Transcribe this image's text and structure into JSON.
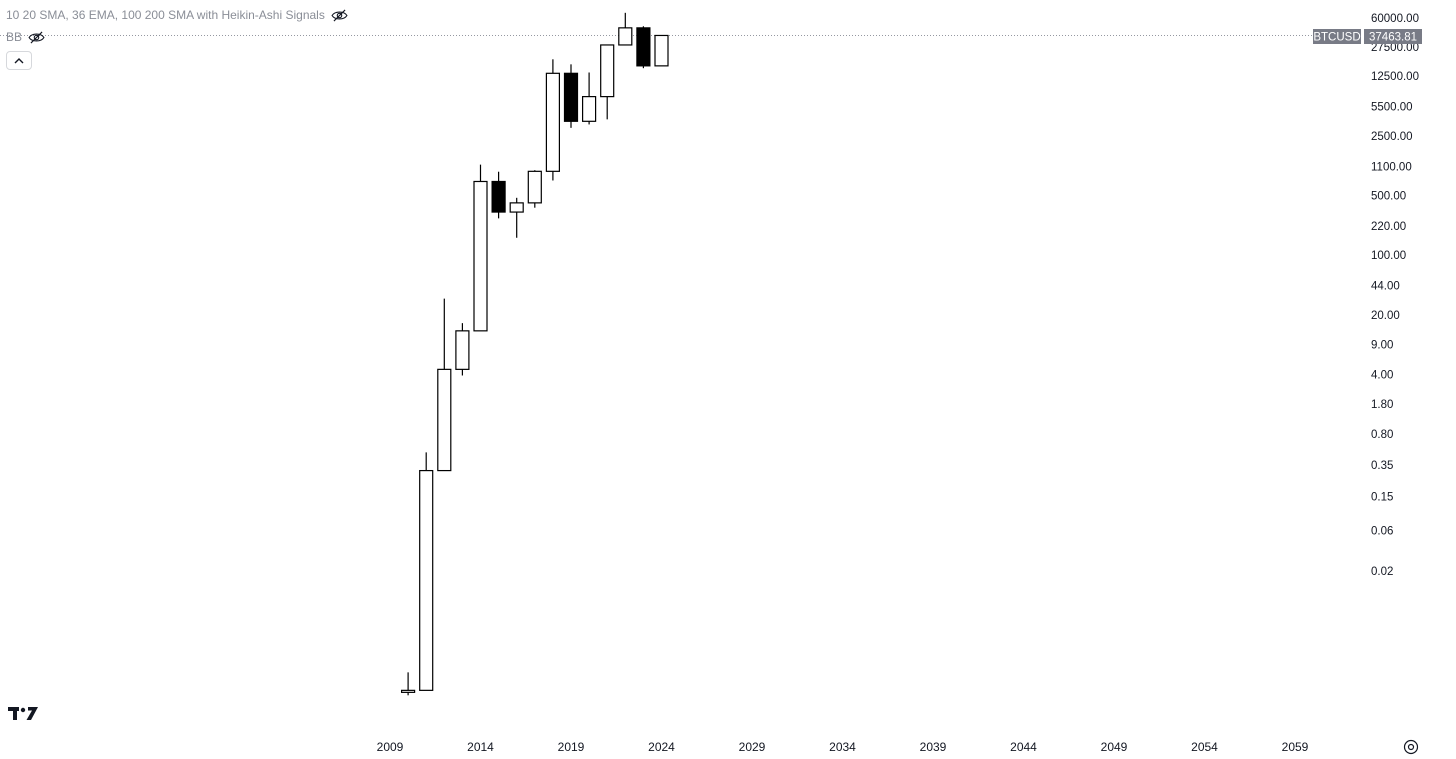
{
  "legend": {
    "indicator1": "10 20 SMA, 36 EMA, 100 200 SMA with Heikin-Ashi Signals",
    "indicator2": "BB"
  },
  "price_tag": {
    "symbol": "BTCUSD",
    "value": "37463.81"
  },
  "icons": {
    "eye_hidden": "eye-off-icon",
    "collapse": "chevron-up-icon",
    "logo": "tradingview-logo",
    "settings": "settings-icon"
  },
  "colors": {
    "up_fill": "#ffffff",
    "down_fill": "#000000",
    "candle_border": "#000000",
    "price_line": "#9598a1",
    "tag_bg": "#787b86"
  },
  "chart_data": {
    "type": "candlestick",
    "title": "",
    "xlabel": "",
    "ylabel": "",
    "y_scale": "log",
    "current_price": 37463.81,
    "y_ticks": [
      "60000.00",
      "27500.00",
      "12500.00",
      "5500.00",
      "2500.00",
      "1100.00",
      "500.00",
      "220.00",
      "100.00",
      "44.00",
      "20.00",
      "9.00",
      "4.00",
      "1.80",
      "0.80",
      "0.35",
      "0.15",
      "0.06",
      "0.02"
    ],
    "x_ticks": [
      "2009",
      "2014",
      "2019",
      "2024",
      "2029",
      "2034",
      "2039",
      "2044",
      "2049",
      "2054",
      "2059"
    ],
    "candles": [
      {
        "year": 2010,
        "open": 0.0008,
        "high": 0.0013,
        "low": 0.0007,
        "close": 0.0008
      },
      {
        "year": 2011,
        "open": 0.0008,
        "high": 0.49,
        "low": 0.0008,
        "close": 0.3
      },
      {
        "year": 2012,
        "open": 0.3,
        "high": 31,
        "low": 0.3,
        "close": 4.6
      },
      {
        "year": 2013,
        "open": 4.6,
        "high": 16,
        "low": 3.9,
        "close": 13
      },
      {
        "year": 2014,
        "open": 13,
        "high": 1150,
        "low": 13,
        "close": 730
      },
      {
        "year": 2015,
        "open": 730,
        "high": 950,
        "low": 270,
        "close": 320
      },
      {
        "year": 2016,
        "open": 320,
        "high": 470,
        "low": 160,
        "close": 410
      },
      {
        "year": 2017,
        "open": 410,
        "high": 990,
        "low": 360,
        "close": 960
      },
      {
        "year": 2018,
        "open": 960,
        "high": 19700,
        "low": 750,
        "close": 13500
      },
      {
        "year": 2019,
        "open": 13500,
        "high": 17200,
        "low": 3100,
        "close": 3700
      },
      {
        "year": 2020,
        "open": 3700,
        "high": 13800,
        "low": 3400,
        "close": 7200
      },
      {
        "year": 2021,
        "open": 7200,
        "high": 29300,
        "low": 3900,
        "close": 29000
      },
      {
        "year": 2022,
        "open": 29000,
        "high": 69000,
        "low": 29000,
        "close": 46000
      },
      {
        "year": 2023,
        "open": 46000,
        "high": 48000,
        "low": 15500,
        "close": 16500
      },
      {
        "year": 2024,
        "open": 16500,
        "high": 37500,
        "low": 16500,
        "close": 37463.81
      }
    ]
  }
}
